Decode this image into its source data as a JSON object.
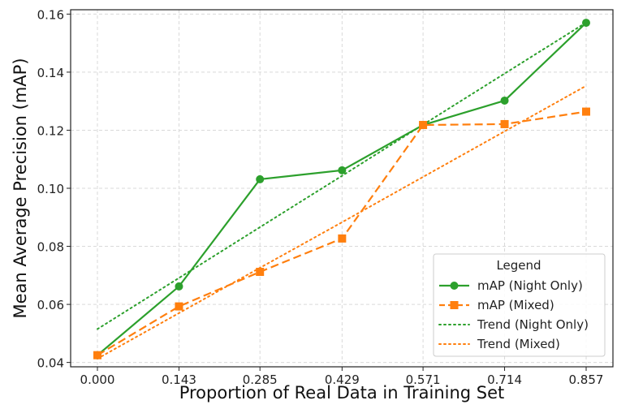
{
  "chart_data": {
    "type": "line",
    "xlabel": "Proportion of Real Data in Training Set",
    "ylabel": "Mean Average Precision (mAP)",
    "x": [
      0.0,
      0.143,
      0.285,
      0.429,
      0.571,
      0.714,
      0.857
    ],
    "x_tick_labels": [
      "0.000",
      "0.143",
      "0.285",
      "0.429",
      "0.571",
      "0.714",
      "0.857"
    ],
    "y_ticks": [
      0.04,
      0.06,
      0.08,
      0.1,
      0.12,
      0.14,
      0.16
    ],
    "y_tick_labels": [
      "0.04",
      "0.06",
      "0.08",
      "0.10",
      "0.12",
      "0.14",
      "0.16"
    ],
    "ylim": [
      0.0385,
      0.1615
    ],
    "xlim": [
      -0.047,
      0.904
    ],
    "grid": true,
    "legend": {
      "title": "Legend",
      "placement": "lower-right",
      "entries": [
        "mAP (Night Only)",
        "mAP (Mixed)",
        "Trend (Night Only)",
        "Trend (Mixed)"
      ]
    },
    "series": [
      {
        "name": "mAP (Night Only)",
        "style": "solid",
        "marker": "circle",
        "color": "#2ca02c",
        "values": [
          0.0425,
          0.0662,
          0.1031,
          0.1062,
          0.1218,
          0.1302,
          0.157
        ]
      },
      {
        "name": "mAP (Mixed)",
        "style": "dashed",
        "marker": "square",
        "color": "#ff7f0e",
        "values": [
          0.0425,
          0.0593,
          0.0712,
          0.0827,
          0.1218,
          0.1221,
          0.1264
        ]
      },
      {
        "name": "Trend (Night Only)",
        "style": "dotted",
        "color": "#2ca02c",
        "trend": true,
        "values": [
          0.0515,
          0.0691,
          0.0866,
          0.1043,
          0.1219,
          0.1395,
          0.1571
        ]
      },
      {
        "name": "Trend (Mixed)",
        "style": "dotted",
        "color": "#ff7f0e",
        "trend": true,
        "values": [
          0.0413,
          0.057,
          0.0726,
          0.0883,
          0.1039,
          0.1196,
          0.1353
        ]
      }
    ]
  }
}
